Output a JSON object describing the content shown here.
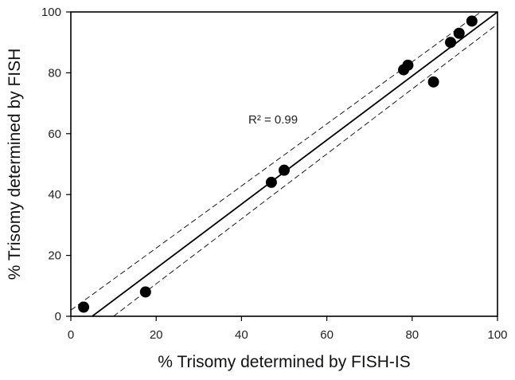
{
  "chart_data": {
    "type": "scatter",
    "title": "",
    "xlabel": "% Trisomy determined by FISH-IS",
    "ylabel": "% Trisomy determined by FISH",
    "xlim": [
      0,
      100
    ],
    "ylim": [
      0,
      100
    ],
    "xticks": [
      0,
      20,
      40,
      60,
      80,
      100
    ],
    "yticks": [
      0,
      20,
      40,
      60,
      80,
      100
    ],
    "grid": false,
    "legend": "none",
    "annotation": "R² = 0.99",
    "colors": {
      "points": "#000000",
      "line": "#000000",
      "axes": "#000000"
    },
    "series": [
      {
        "x": [
          3,
          17.5,
          47,
          50,
          78,
          79,
          85,
          89,
          91,
          94
        ],
        "y": [
          3,
          8,
          44,
          48,
          81,
          82.5,
          77,
          90,
          93,
          97
        ]
      }
    ],
    "regression_line": {
      "x": [
        5,
        100
      ],
      "y": [
        0,
        100
      ]
    },
    "confidence_bands": [
      {
        "x": [
          0,
          100
        ],
        "y": [
          2,
          104
        ]
      },
      {
        "x": [
          10,
          100
        ],
        "y": [
          0,
          96
        ]
      }
    ]
  }
}
